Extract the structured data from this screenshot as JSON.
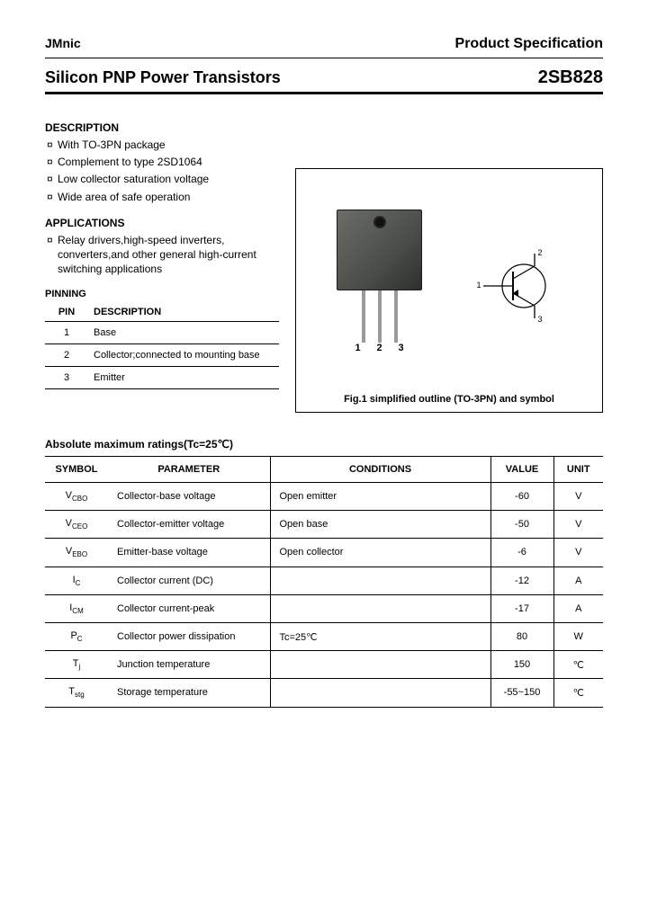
{
  "header": {
    "brand": "JMnic",
    "right": "Product Specification"
  },
  "title": {
    "left": "Silicon PNP Power Transistors",
    "right": "2SB828"
  },
  "sections": {
    "description_head": "DESCRIPTION",
    "description_items": [
      "With TO-3PN package",
      "Complement to type 2SD1064",
      "Low collector saturation voltage",
      "Wide area of safe operation"
    ],
    "applications_head": "APPLICATIONS",
    "applications_items": [
      "Relay drivers,high-speed inverters, converters,and other general high-current switching applications"
    ],
    "pinning_head": "PINNING",
    "pin_col1": "PIN",
    "pin_col2": "DESCRIPTION",
    "pins": [
      {
        "n": "1",
        "d": "Base"
      },
      {
        "n": "2",
        "d": "Collector;connected to mounting base"
      },
      {
        "n": "3",
        "d": "Emitter"
      }
    ]
  },
  "figure": {
    "lead_labels": [
      "1",
      "2",
      "3"
    ],
    "symbol_labels": {
      "b": "1",
      "c": "2",
      "e": "3"
    },
    "caption": "Fig.1 simplified outline (TO-3PN) and symbol"
  },
  "ratings": {
    "heading": "Absolute maximum ratings(Tc=25℃)",
    "columns": [
      "SYMBOL",
      "PARAMETER",
      "CONDITIONS",
      "VALUE",
      "UNIT"
    ],
    "rows": [
      {
        "sym_html": "V<sub>CBO</sub>",
        "param": "Collector-base voltage",
        "cond": "Open emitter",
        "val": "-60",
        "unit": "V"
      },
      {
        "sym_html": "V<sub>CEO</sub>",
        "param": "Collector-emitter voltage",
        "cond": "Open base",
        "val": "-50",
        "unit": "V"
      },
      {
        "sym_html": "V<sub>EBO</sub>",
        "param": "Emitter-base voltage",
        "cond": "Open collector",
        "val": "-6",
        "unit": "V"
      },
      {
        "sym_html": "I<sub>C</sub>",
        "param": "Collector current (DC)",
        "cond": "",
        "val": "-12",
        "unit": "A"
      },
      {
        "sym_html": "I<sub>CM</sub>",
        "param": "Collector current-peak",
        "cond": "",
        "val": "-17",
        "unit": "A"
      },
      {
        "sym_html": "P<sub>C</sub>",
        "param": "Collector power dissipation",
        "cond": "Tc=25℃",
        "val": "80",
        "unit": "W"
      },
      {
        "sym_html": "T<sub>j</sub>",
        "param": "Junction temperature",
        "cond": "",
        "val": "150",
        "unit": "℃"
      },
      {
        "sym_html": "T<sub>stg</sub>",
        "param": "Storage temperature",
        "cond": "",
        "val": "-55~150",
        "unit": "℃"
      }
    ]
  },
  "colors": {
    "text": "#000000",
    "background": "#ffffff",
    "rule": "#000000",
    "package_body": "#4a4d48",
    "lead": "#9a9a9a"
  }
}
